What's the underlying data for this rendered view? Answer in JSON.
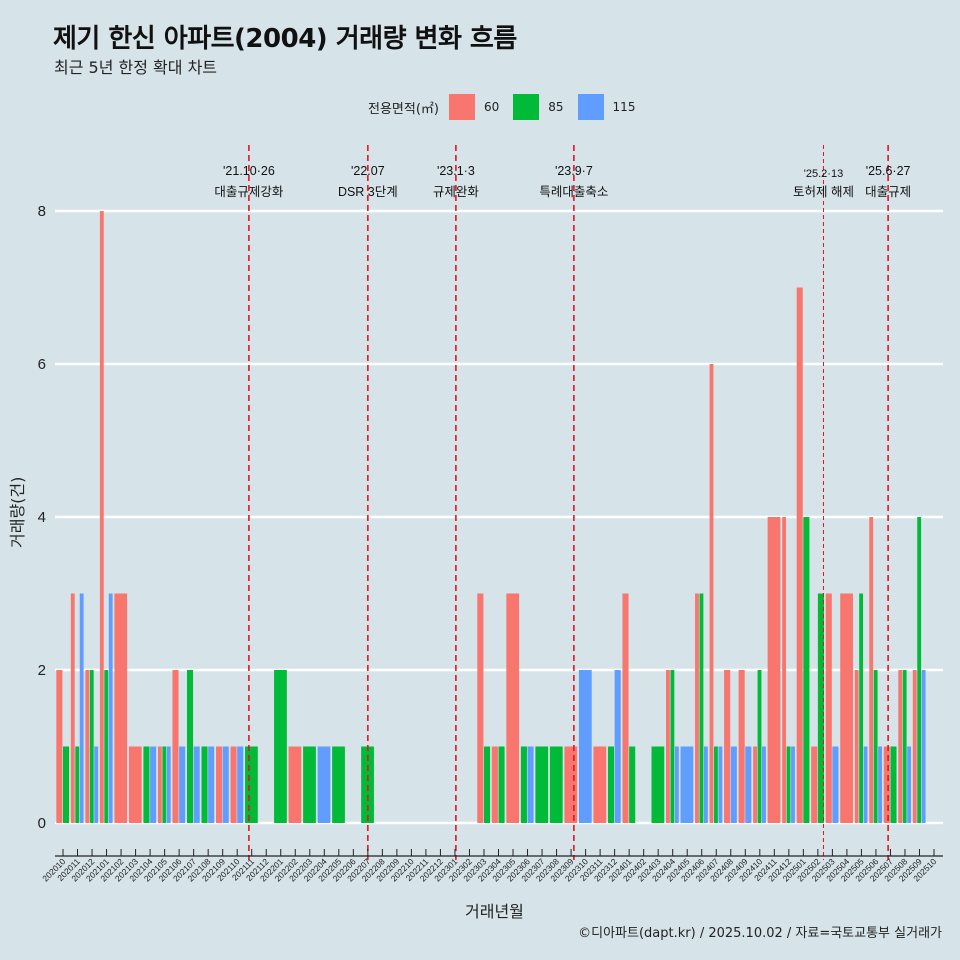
{
  "title": "제기 한신 아파트(2004) 거래량 변화 흐름",
  "subtitle": "최근 5년 한정 확대 차트",
  "caption": "©디아파트(dapt.kr) / 2025.10.02 / 자료=국토교통부 실거래가",
  "chart_data": {
    "type": "bar",
    "title": "제기 한신 아파트(2004) 거래량 변화 흐름",
    "subtitle": "최근 5년 한정 확대 차트",
    "xlabel": "거래년월",
    "ylabel": "거래량(건)",
    "ylim": [
      0,
      8
    ],
    "yticks": [
      0,
      2,
      4,
      6,
      8
    ],
    "grid": true,
    "legend": {
      "title": "전용면적(㎡)",
      "placement": "top",
      "entries": [
        {
          "name": "60",
          "color": "#F8766D"
        },
        {
          "name": "85",
          "color": "#00BA38"
        },
        {
          "name": "115",
          "color": "#619CFF"
        }
      ]
    },
    "categories": [
      "202010",
      "202011",
      "202012",
      "202101",
      "202102",
      "202103",
      "202104",
      "202105",
      "202106",
      "202107",
      "202108",
      "202109",
      "202110",
      "202111",
      "202112",
      "202201",
      "202202",
      "202203",
      "202204",
      "202205",
      "202206",
      "202207",
      "202208",
      "202209",
      "202210",
      "202211",
      "202212",
      "202301",
      "202302",
      "202303",
      "202304",
      "202305",
      "202306",
      "202307",
      "202308",
      "202309",
      "202310",
      "202311",
      "202312",
      "202401",
      "202402",
      "202403",
      "202404",
      "202405",
      "202406",
      "202407",
      "202408",
      "202409",
      "202410",
      "202411",
      "202412",
      "202501",
      "202502",
      "202503",
      "202504",
      "202505",
      "202506",
      "202507",
      "202508",
      "202509",
      "202510"
    ],
    "series": [
      {
        "name": "60",
        "values": [
          2,
          3,
          2,
          8,
          3,
          1,
          null,
          1,
          2,
          null,
          null,
          1,
          1,
          null,
          null,
          null,
          1,
          null,
          null,
          null,
          null,
          null,
          null,
          null,
          null,
          null,
          null,
          null,
          null,
          3,
          1,
          3,
          null,
          null,
          null,
          1,
          null,
          1,
          null,
          3,
          null,
          null,
          2,
          null,
          3,
          6,
          2,
          2,
          1,
          4,
          4,
          7,
          1,
          3,
          3,
          2,
          4,
          1,
          2,
          2,
          null
        ]
      },
      {
        "name": "85",
        "values": [
          1,
          1,
          2,
          2,
          null,
          null,
          1,
          1,
          null,
          2,
          1,
          null,
          null,
          1,
          null,
          2,
          null,
          1,
          null,
          1,
          null,
          1,
          null,
          null,
          null,
          null,
          null,
          null,
          null,
          1,
          1,
          null,
          1,
          1,
          1,
          null,
          null,
          null,
          1,
          1,
          null,
          1,
          2,
          null,
          3,
          1,
          null,
          null,
          2,
          null,
          1,
          4,
          3,
          null,
          null,
          3,
          2,
          1,
          2,
          4,
          null
        ]
      },
      {
        "name": "115",
        "values": [
          null,
          3,
          1,
          3,
          null,
          null,
          1,
          1,
          1,
          1,
          1,
          1,
          1,
          null,
          null,
          null,
          null,
          null,
          1,
          null,
          null,
          null,
          null,
          null,
          null,
          null,
          null,
          null,
          null,
          null,
          null,
          null,
          1,
          null,
          null,
          null,
          2,
          null,
          2,
          null,
          null,
          null,
          1,
          1,
          1,
          1,
          1,
          1,
          1,
          null,
          1,
          null,
          null,
          1,
          null,
          1,
          1,
          null,
          1,
          2,
          null
        ]
      }
    ],
    "annotations": [
      {
        "date": "2021-10-26",
        "label1": "'21.10·26",
        "label2": "대출규제강화",
        "style": "dashed"
      },
      {
        "date": "2022-07-01",
        "label1": "'22.07",
        "label2": "DSR 3단계",
        "style": "dashed"
      },
      {
        "date": "2023-01-03",
        "label1": "'23.1·3",
        "label2": "규제완화",
        "style": "dashed"
      },
      {
        "date": "2023-09-07",
        "label1": "'23.9·7",
        "label2": "특례대출축소",
        "style": "dashed"
      },
      {
        "date": "2025-02-13",
        "label1": "'25.2·13",
        "label2": "토허제 해제",
        "style": "thin-dashed"
      },
      {
        "date": "2025-06-27",
        "label1": "'25.6·27",
        "label2": "대출규제",
        "style": "dashed"
      }
    ]
  }
}
